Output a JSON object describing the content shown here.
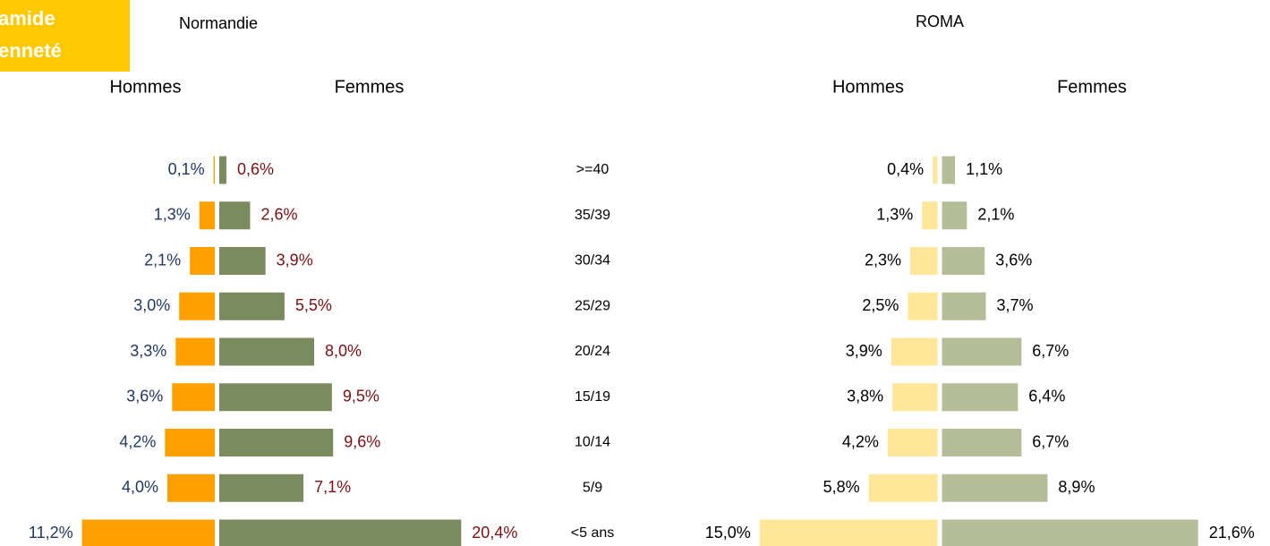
{
  "badge": {
    "lines": [
      "amide",
      "enneté"
    ]
  },
  "chart_data": [
    {
      "type": "bar",
      "title": "Normandie",
      "categories": [
        ">=40",
        "35/39",
        "30/34",
        "25/29",
        "20/24",
        "15/19",
        "10/14",
        "5/9",
        "<5 ans"
      ],
      "series": [
        {
          "name": "Hommes",
          "color": "#ff9f00",
          "label_color": "#1f3864",
          "values": [
            0.1,
            1.3,
            2.1,
            3.0,
            3.3,
            3.6,
            4.2,
            4.0,
            11.2
          ],
          "value_labels": [
            "0,1%",
            "1,3%",
            "2,1%",
            "3,0%",
            "3,3%",
            "3,6%",
            "4,2%",
            "4,0%",
            "11,2%"
          ]
        },
        {
          "name": "Femmes",
          "color": "#7a8c5e",
          "label_color": "#7b1010",
          "values": [
            0.6,
            2.6,
            3.9,
            5.5,
            8.0,
            9.5,
            9.6,
            7.1,
            20.4
          ],
          "value_labels": [
            "0,6%",
            "2,6%",
            "3,9%",
            "5,5%",
            "8,0%",
            "9,5%",
            "9,6%",
            "7,1%",
            "20,4%"
          ]
        }
      ]
    },
    {
      "type": "bar",
      "title": "ROMA",
      "series": [
        {
          "name": "Hommes",
          "color": "#ffe699",
          "label_color": "#000000",
          "values": [
            0.4,
            1.3,
            2.3,
            2.5,
            3.9,
            3.8,
            4.2,
            5.8,
            15.0
          ],
          "value_labels": [
            "0,4%",
            "1,3%",
            "2,3%",
            "2,5%",
            "3,9%",
            "3,8%",
            "4,2%",
            "5,8%",
            "15,0%"
          ]
        },
        {
          "name": "Femmes",
          "color": "#b5bd98",
          "label_color": "#000000",
          "values": [
            1.1,
            2.1,
            3.6,
            3.7,
            6.7,
            6.4,
            6.7,
            8.9,
            21.6
          ],
          "value_labels": [
            "1,1%",
            "2,1%",
            "3,6%",
            "3,7%",
            "6,7%",
            "6,4%",
            "6,7%",
            "8,9%",
            "21,6%"
          ]
        }
      ]
    }
  ]
}
